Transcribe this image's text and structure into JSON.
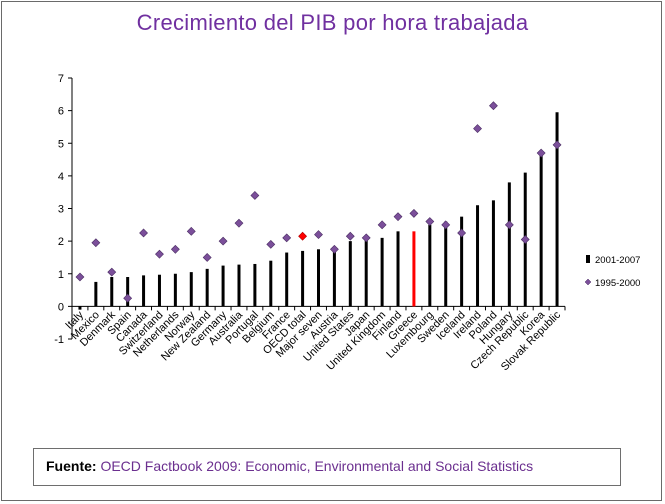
{
  "title": "Crecimiento del PIB por hora trabajada",
  "source": {
    "label": "Fuente",
    "colon": ":",
    "text": "OECD Factbook 2009: Economic, Environmental and Social Statistics"
  },
  "colors": {
    "title": "#7030a0",
    "bar": "#000000",
    "highlight_bar": "#ff0000",
    "marker": "#7b4f9a",
    "marker_highlight": "#ff0000",
    "source_text": "#6b2f8f"
  },
  "chart_data": {
    "type": "bar",
    "title": "Crecimiento del PIB por hora trabajada",
    "xlabel": "",
    "ylabel": "",
    "ylim": [
      -1,
      7
    ],
    "yticks": [
      -1,
      0,
      1,
      2,
      3,
      4,
      5,
      6,
      7
    ],
    "grid": false,
    "legend_position": "right",
    "highlight_categories": [
      "Greece"
    ],
    "highlight_marker_categories": [
      "OECD total"
    ],
    "categories": [
      "Italy",
      "Mexico",
      "Denmark",
      "Spain",
      "Canada",
      "Switzerland",
      "Netherlands",
      "Norway",
      "New Zealand",
      "Germany",
      "Australia",
      "Portugal",
      "Belgium",
      "France",
      "OECD total",
      "Major seven",
      "Austria",
      "United States",
      "Japan",
      "United Kingdom",
      "Finland",
      "Greece",
      "Luxembourg",
      "Sweden",
      "Iceland",
      "Ireland",
      "Poland",
      "Hungary",
      "Czech Republic",
      "Korea",
      "Slovak Republic"
    ],
    "series": [
      {
        "name": "2001-2007",
        "type": "bar",
        "values": [
          -0.1,
          0.75,
          0.9,
          0.9,
          0.95,
          0.97,
          1.0,
          1.05,
          1.15,
          1.25,
          1.28,
          1.3,
          1.4,
          1.65,
          1.7,
          1.75,
          1.75,
          2.0,
          2.05,
          2.1,
          2.3,
          2.3,
          2.5,
          2.6,
          2.75,
          3.1,
          3.25,
          3.8,
          4.1,
          4.75,
          5.95
        ]
      },
      {
        "name": "1995-2000",
        "type": "scatter",
        "values": [
          0.9,
          1.95,
          1.05,
          0.25,
          2.25,
          1.6,
          1.75,
          2.3,
          1.5,
          2.0,
          2.55,
          3.4,
          1.9,
          2.1,
          2.15,
          2.2,
          1.75,
          2.15,
          2.1,
          2.5,
          2.75,
          2.85,
          2.6,
          2.5,
          2.25,
          5.45,
          6.15,
          2.5,
          2.05,
          4.7,
          4.95
        ]
      }
    ]
  }
}
